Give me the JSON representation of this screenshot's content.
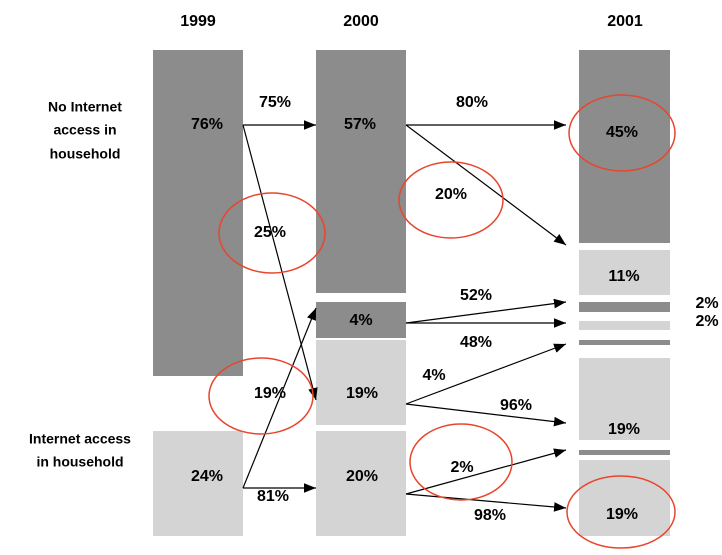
{
  "columns": [
    "1999",
    "2000",
    "2001"
  ],
  "row_labels": [
    [
      "No Internet",
      "access in",
      "household"
    ],
    [
      "Internet access",
      "in household"
    ]
  ],
  "segments": {
    "y1999": [
      "76%",
      "24%"
    ],
    "y2000": [
      "57%",
      "4%",
      "19%",
      "20%"
    ],
    "y2001": [
      "45%",
      "11%",
      "2%",
      "2%",
      "19%",
      "19%"
    ]
  },
  "flows": [
    "75%",
    "25%",
    "80%",
    "20%",
    "52%",
    "48%",
    "4%",
    "96%",
    "19%",
    "81%",
    "2%",
    "98%"
  ]
}
